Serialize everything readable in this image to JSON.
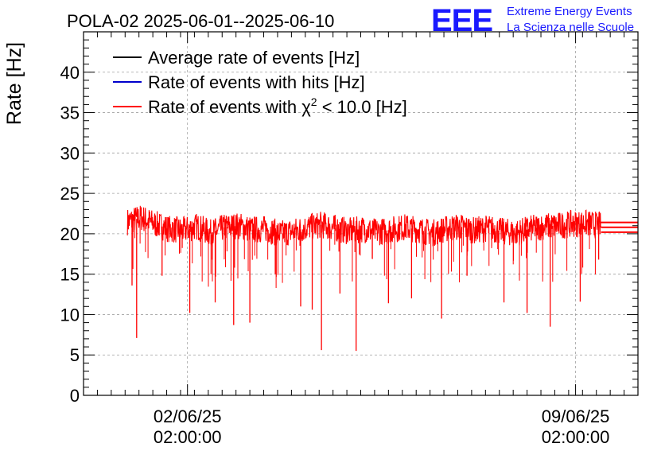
{
  "header": {
    "title": "POLA-02 2025-06-01--2025-06-10",
    "logo_text": "EEE",
    "logo_line1": "Extreme Energy Events",
    "logo_line2": "La Scienza nelle Scuole"
  },
  "colors": {
    "average": "#000000",
    "hits": "#0000cc",
    "chi2": "#ff0000",
    "logo": "#1a1aff",
    "grid": "#a0a0a0"
  },
  "chart_data": {
    "type": "line",
    "title": "POLA-02 2025-06-01--2025-06-10",
    "ylabel": "Rate [Hz]",
    "xlabel": "",
    "ylim": [
      0,
      45
    ],
    "yticks": [
      0,
      5,
      10,
      15,
      20,
      25,
      30,
      35,
      40
    ],
    "ytick_labels": [
      "0",
      "5",
      "10",
      "15",
      "20",
      "25",
      "30",
      "35",
      "40"
    ],
    "xlim": [
      "2025-05-31T05:00:00",
      "2025-06-10T05:00:00"
    ],
    "xticks": [
      {
        "date": "2025-06-02T02:00:00",
        "label1": "02/06/25",
        "label2": "02:00:00"
      },
      {
        "date": "2025-06-09T02:00:00",
        "label1": "09/06/25",
        "label2": "02:00:00"
      }
    ],
    "grid": true,
    "legend_position": "top-left",
    "legend": [
      {
        "key": "average",
        "label": "Average rate of events [Hz]"
      },
      {
        "key": "hits",
        "label": "Rate of events with hits [Hz]"
      },
      {
        "key": "chi2",
        "label_prefix": "Rate of events with ",
        "label_symbol": "χ",
        "label_sup": "2",
        "label_suffix": " < 10.0 [Hz]"
      }
    ],
    "data_range": {
      "start": "2025-06-01T00:00:00",
      "end": "2025-06-09T13:00:00"
    },
    "series": [
      {
        "key": "chi2",
        "baseline_hz": 20.8,
        "band_hz": [
          19.4,
          22.8
        ],
        "x": [
          "2025-06-01T00:00:00",
          "2025-06-01T06:00:00",
          "2025-06-01T12:00:00",
          "2025-06-01T18:00:00",
          "2025-06-02T00:00:00",
          "2025-06-02T06:00:00",
          "2025-06-02T12:00:00",
          "2025-06-02T18:00:00",
          "2025-06-03T00:00:00",
          "2025-06-03T06:00:00",
          "2025-06-03T12:00:00",
          "2025-06-03T18:00:00",
          "2025-06-04T00:00:00",
          "2025-06-04T06:00:00",
          "2025-06-04T12:00:00",
          "2025-06-04T18:00:00",
          "2025-06-05T00:00:00",
          "2025-06-05T06:00:00",
          "2025-06-05T12:00:00",
          "2025-06-05T18:00:00",
          "2025-06-06T00:00:00",
          "2025-06-06T06:00:00",
          "2025-06-06T12:00:00",
          "2025-06-06T18:00:00",
          "2025-06-07T00:00:00",
          "2025-06-07T06:00:00",
          "2025-06-07T12:00:00",
          "2025-06-07T18:00:00",
          "2025-06-08T00:00:00",
          "2025-06-08T06:00:00",
          "2025-06-08T12:00:00",
          "2025-06-08T18:00:00",
          "2025-06-09T00:00:00",
          "2025-06-09T06:00:00",
          "2025-06-09T13:00:00"
        ],
        "y": [
          21.5,
          22.0,
          21.2,
          20.6,
          20.4,
          20.9,
          20.1,
          20.8,
          21.0,
          20.5,
          20.6,
          20.0,
          20.3,
          20.8,
          21.1,
          20.7,
          20.3,
          20.6,
          20.2,
          20.5,
          20.8,
          20.5,
          20.1,
          20.6,
          20.9,
          20.4,
          20.7,
          20.3,
          20.1,
          20.6,
          20.9,
          21.0,
          21.2,
          21.3,
          21.0
        ],
        "dips": [
          {
            "x": "2025-06-01T02:00:00",
            "y": 13.6
          },
          {
            "x": "2025-06-01T04:00:00",
            "y": 7.1
          },
          {
            "x": "2025-06-01T15:00:00",
            "y": 14.8
          },
          {
            "x": "2025-06-02T03:00:00",
            "y": 10.2
          },
          {
            "x": "2025-06-02T14:00:00",
            "y": 11.5
          },
          {
            "x": "2025-06-02T22:00:00",
            "y": 8.7
          },
          {
            "x": "2025-06-03T05:00:00",
            "y": 9.0
          },
          {
            "x": "2025-06-03T16:00:00",
            "y": 15.0
          },
          {
            "x": "2025-06-04T03:00:00",
            "y": 11.0
          },
          {
            "x": "2025-06-04T08:00:00",
            "y": 10.6
          },
          {
            "x": "2025-06-04T12:00:00",
            "y": 5.6
          },
          {
            "x": "2025-06-04T20:00:00",
            "y": 12.6
          },
          {
            "x": "2025-06-05T03:00:00",
            "y": 5.5
          },
          {
            "x": "2025-06-05T17:00:00",
            "y": 11.4
          },
          {
            "x": "2025-06-06T03:00:00",
            "y": 12.0
          },
          {
            "x": "2025-06-06T16:00:00",
            "y": 9.5
          },
          {
            "x": "2025-06-07T03:00:00",
            "y": 14.8
          },
          {
            "x": "2025-06-07T19:00:00",
            "y": 11.5
          },
          {
            "x": "2025-06-08T05:00:00",
            "y": 10.2
          },
          {
            "x": "2025-06-08T15:00:00",
            "y": 8.5
          },
          {
            "x": "2025-06-09T04:00:00",
            "y": 11.6
          },
          {
            "x": "2025-06-09T12:00:00",
            "y": 16.8
          }
        ],
        "tail_lines_hz": [
          20.2,
          20.8,
          21.4
        ]
      }
    ]
  }
}
